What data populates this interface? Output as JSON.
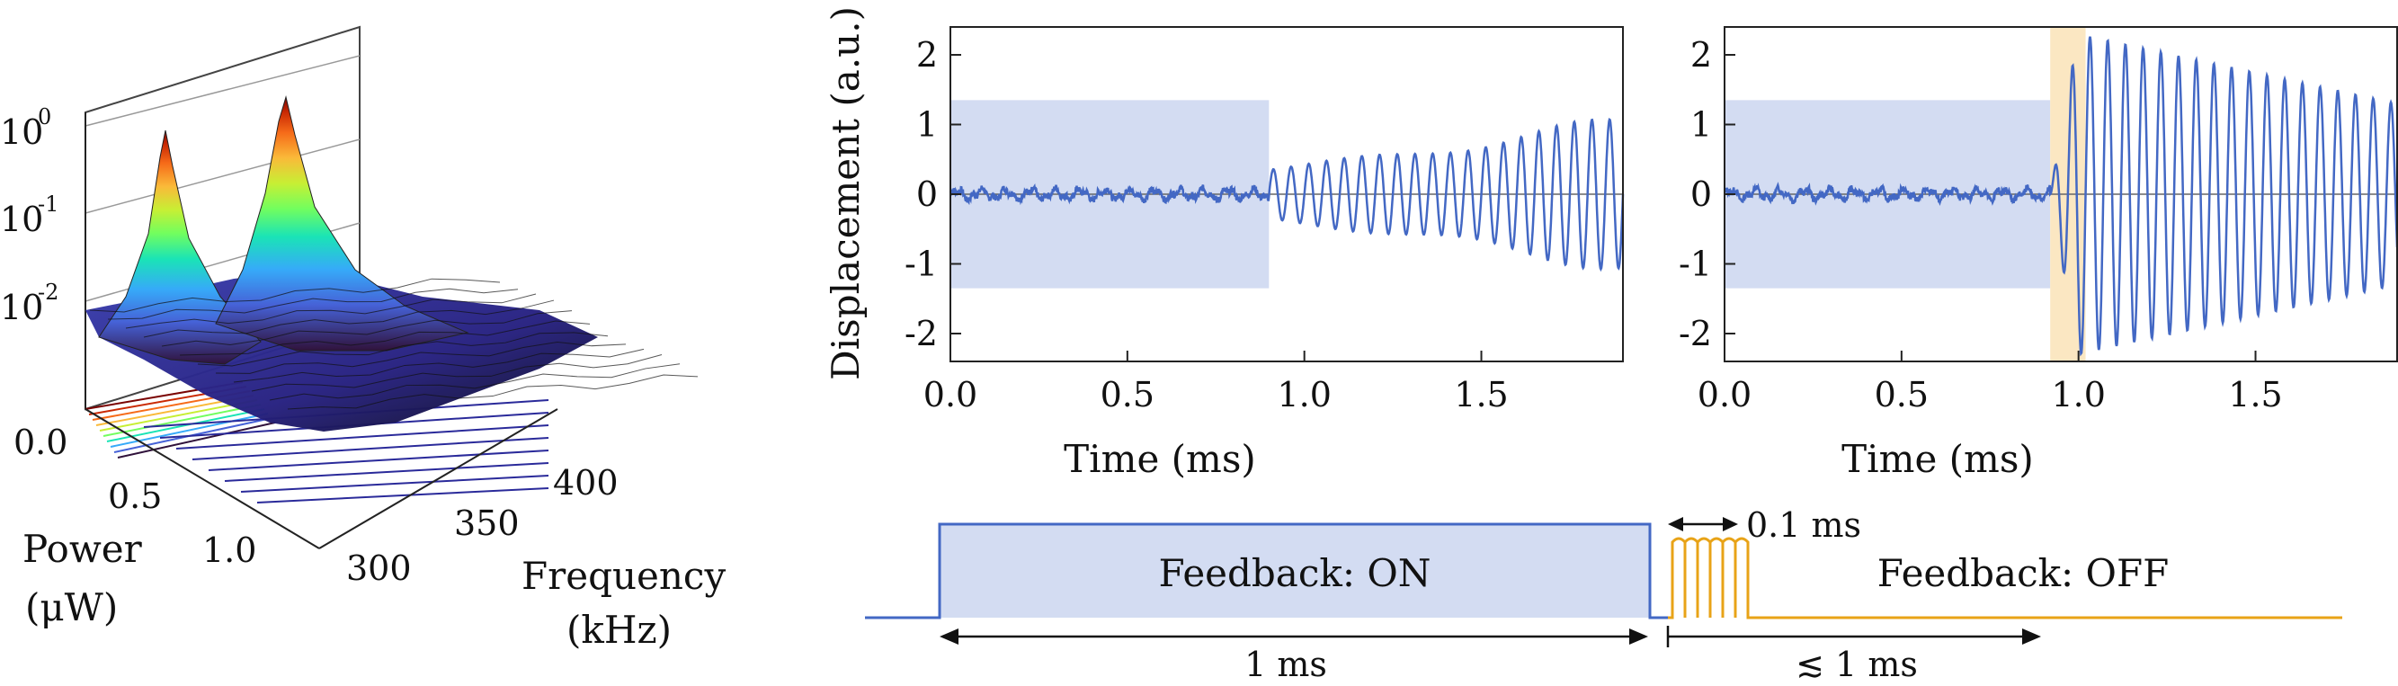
{
  "chart_data": [
    {
      "type": "surface",
      "zlabel_ticks": [
        "10",
        "10",
        "10"
      ],
      "zlabel_exponents": [
        "0",
        "-1",
        "-2"
      ],
      "ylabel_lines": [
        "Power",
        "(μW)"
      ],
      "y_ticks": [
        "0.0",
        "0.5",
        "1.0"
      ],
      "xlabel_lines": [
        "Frequency",
        "(kHz)"
      ],
      "x_ticks": [
        "300",
        "350",
        "400"
      ],
      "peaks_khz": [
        300,
        345
      ],
      "colormap": [
        "#30123b",
        "#4662d7",
        "#36aaf9",
        "#1ae4b6",
        "#72fe5e",
        "#c7ef34",
        "#faba39",
        "#f66b19",
        "#ca2a04",
        "#7a0403"
      ]
    },
    {
      "type": "line",
      "title": "",
      "xlabel": "Time (ms)",
      "ylabel": "Displacement (a.u.)",
      "xlim": [
        0,
        1.9
      ],
      "ylim": [
        -2.4,
        2.4
      ],
      "x_ticks": [
        "0.0",
        "0.5",
        "1.0",
        "1.5"
      ],
      "y_ticks": [
        "2",
        "1",
        "0",
        "-1",
        "-2"
      ],
      "shaded_region": {
        "x": [
          0,
          0.9
        ],
        "y": [
          -1.35,
          1.35
        ],
        "color": "#d3dcf2"
      },
      "series": [
        {
          "color": "#4368c4",
          "segments": [
            {
              "x": [
                0,
                0.9
              ],
              "amplitude": 0.12,
              "kind": "noise"
            },
            {
              "x": [
                0.9,
                1.9
              ],
              "amplitude_start": 0.35,
              "amplitude_end": 1.15,
              "period_ms": 0.05,
              "kind": "oscillation"
            }
          ]
        }
      ]
    },
    {
      "type": "line",
      "title": "",
      "xlabel": "Time (ms)",
      "ylabel": "",
      "xlim": [
        0,
        1.9
      ],
      "ylim": [
        -2.4,
        2.4
      ],
      "x_ticks": [
        "0.0",
        "0.5",
        "1.0",
        "1.5"
      ],
      "y_ticks": [
        "2",
        "1",
        "0",
        "-1",
        "-2"
      ],
      "shaded_region": {
        "x": [
          0,
          0.92
        ],
        "y": [
          -1.35,
          1.35
        ],
        "color": "#d3dcf2"
      },
      "highlight_region": {
        "x": [
          0.92,
          1.02
        ],
        "color": "#fbe7c2"
      },
      "series": [
        {
          "color": "#4368c4",
          "segments": [
            {
              "x": [
                0,
                0.92
              ],
              "amplitude": 0.12,
              "kind": "noise"
            },
            {
              "x": [
                0.92,
                1.9
              ],
              "amplitude_peak": 2.3,
              "amplitude_end": 1.3,
              "period_ms": 0.05,
              "kind": "oscillation"
            }
          ]
        }
      ]
    }
  ],
  "timing": {
    "feedback_on_label": "Feedback: ON",
    "feedback_off_label": "Feedback: OFF",
    "pulse_label": "0.1 ms",
    "on_duration_label": "1 ms",
    "off_duration_label": "≲ 1 ms",
    "on_color": "#4368c4",
    "pulse_color": "#e8a317"
  }
}
